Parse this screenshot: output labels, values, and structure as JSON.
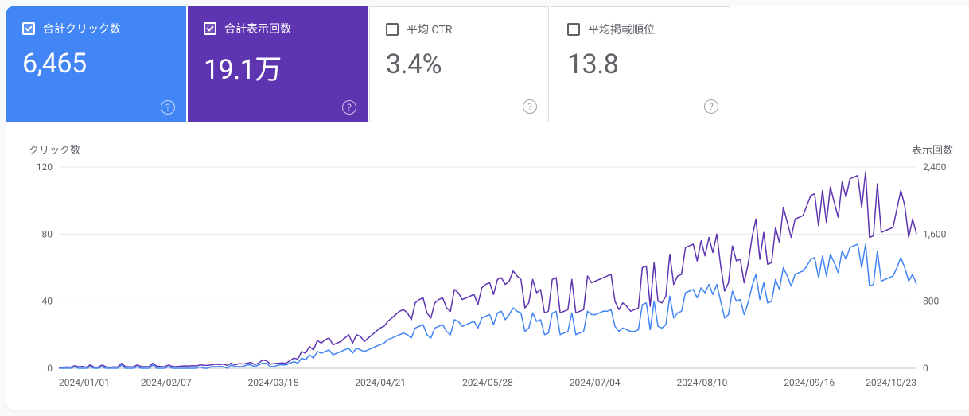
{
  "metrics": [
    {
      "label": "合計クリック数",
      "value": "6,465",
      "selected": true,
      "bg": "#4285f4"
    },
    {
      "label": "合計表示回数",
      "value": "19.1万",
      "selected": true,
      "bg": "#5e35b1"
    },
    {
      "label": "平均 CTR",
      "value": "3.4%",
      "selected": false,
      "bg": "#ffffff"
    },
    {
      "label": "平均掲載順位",
      "value": "13.8",
      "selected": false,
      "bg": "#ffffff"
    }
  ],
  "chart": {
    "type": "line",
    "left_axis": {
      "title": "クリック数",
      "min": 0,
      "max": 120,
      "ticks": [
        0,
        40,
        80,
        120
      ]
    },
    "right_axis": {
      "title": "表示回数",
      "min": 0,
      "max": 2400,
      "ticks": [
        0,
        800,
        1600,
        2400
      ],
      "tick_labels": [
        "0",
        "800",
        "1,600",
        "2,400"
      ]
    },
    "x_labels": [
      "2024/01/01",
      "2024/02/07",
      "2024/03/15",
      "2024/04/21",
      "2024/05/28",
      "2024/07/04",
      "2024/08/10",
      "2024/09/16",
      "2024/10/23"
    ],
    "grid_color": "#e8eaed",
    "baseline_color": "#bdc1c6",
    "background_color": "#ffffff",
    "series": [
      {
        "name": "impressions",
        "axis": "right",
        "color": "#5e35b1",
        "stroke_width": 1.5,
        "data": [
          10,
          8,
          16,
          12,
          30,
          18,
          22,
          12,
          40,
          12,
          14,
          38,
          18,
          12,
          16,
          14,
          60,
          20,
          18,
          16,
          40,
          22,
          20,
          18,
          60,
          24,
          20,
          18,
          40,
          22,
          20,
          24,
          28,
          26,
          30,
          28,
          40,
          36,
          34,
          40,
          48,
          44,
          50,
          34,
          60,
          40,
          56,
          50,
          60,
          70,
          44,
          60,
          100,
          90,
          50,
          56,
          60,
          64,
          60,
          90,
          120,
          110,
          200,
          180,
          260,
          220,
          330,
          300,
          340,
          360,
          280,
          300,
          320,
          360,
          400,
          300,
          400,
          380,
          320,
          360,
          400,
          440,
          480,
          500,
          560,
          600,
          640,
          680,
          700,
          660,
          580,
          780,
          820,
          840,
          660,
          600,
          780,
          820,
          840,
          720,
          680,
          940,
          900,
          820,
          840,
          860,
          880,
          760,
          960,
          1000,
          1020,
          880,
          1060,
          1080,
          1000,
          1040,
          1160,
          1100,
          1060,
          720,
          780,
          1060,
          900,
          940,
          660,
          680,
          1060,
          1080,
          660,
          680,
          700,
          1060,
          660,
          680,
          700,
          1100,
          1020,
          1040,
          1060,
          1080,
          1100,
          1120,
          800,
          700,
          780,
          740,
          680,
          700,
          720,
          1200,
          1220,
          740,
          1260,
          800,
          780,
          860,
          1360,
          1000,
          1100,
          1120,
          1440,
          1460,
          1480,
          1280,
          1520,
          1340,
          1560,
          1380,
          1600,
          1220,
          920,
          1020,
          1460,
          1280,
          1300,
          1020,
          1240,
          1560,
          1780,
          1300,
          1620,
          1240,
          1260,
          1680,
          1500,
          1920,
          1740,
          1560,
          1780,
          1800,
          1820,
          1940,
          2060,
          2080,
          1700,
          2120,
          1740,
          2160,
          1980,
          1800,
          2220,
          2040,
          2260,
          2280,
          2300,
          1920,
          2340,
          1560,
          1580,
          2200,
          1620,
          1640,
          1660,
          1680,
          1900,
          2120,
          1940,
          1560,
          1780,
          1600
        ]
      },
      {
        "name": "clicks",
        "axis": "left",
        "color": "#4285f4",
        "stroke_width": 1.5,
        "data": [
          0,
          0,
          0,
          0,
          1,
          0,
          0,
          0,
          1,
          0,
          0,
          1,
          0,
          0,
          0,
          0,
          2,
          0,
          0,
          0,
          1,
          0,
          0,
          0,
          2,
          0,
          0,
          0,
          1,
          0,
          0,
          0,
          0,
          0,
          0,
          0,
          1,
          0,
          0,
          1,
          1,
          1,
          1,
          0,
          2,
          1,
          1,
          1,
          2,
          2,
          1,
          2,
          3,
          3,
          1,
          1,
          2,
          2,
          2,
          3,
          4,
          3,
          6,
          5,
          8,
          6,
          10,
          9,
          10,
          11,
          8,
          9,
          10,
          11,
          12,
          9,
          12,
          11,
          10,
          11,
          12,
          13,
          14,
          15,
          17,
          18,
          19,
          20,
          21,
          20,
          18,
          24,
          25,
          26,
          20,
          18,
          24,
          25,
          26,
          22,
          20,
          29,
          28,
          25,
          26,
          27,
          28,
          24,
          30,
          31,
          32,
          26,
          33,
          34,
          29,
          32,
          36,
          34,
          33,
          22,
          24,
          33,
          28,
          29,
          20,
          21,
          33,
          34,
          20,
          21,
          22,
          33,
          20,
          21,
          22,
          34,
          32,
          32,
          33,
          34,
          34,
          35,
          25,
          22,
          24,
          23,
          22,
          22,
          23,
          38,
          39,
          23,
          40,
          25,
          24,
          26,
          43,
          30,
          33,
          34,
          45,
          46,
          47,
          42,
          48,
          45,
          50,
          44,
          50,
          40,
          30,
          32,
          46,
          40,
          41,
          32,
          39,
          49,
          56,
          41,
          51,
          39,
          40,
          53,
          47,
          60,
          55,
          49,
          56,
          57,
          58,
          61,
          65,
          66,
          54,
          67,
          55,
          68,
          63,
          57,
          70,
          65,
          72,
          73,
          74,
          60,
          74,
          49,
          50,
          70,
          52,
          53,
          54,
          55,
          60,
          66,
          60,
          52,
          56,
          50
        ]
      }
    ],
    "label_fontsize": 12,
    "title_fontsize": 13
  }
}
